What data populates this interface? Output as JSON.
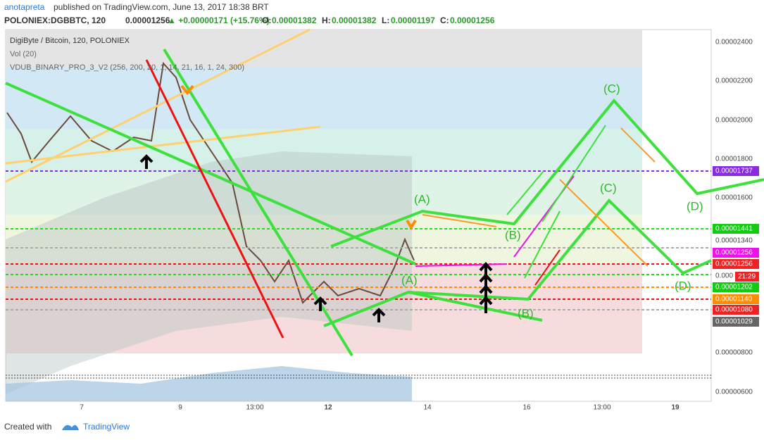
{
  "header": {
    "user": "anotapreta",
    "published": "published on TradingView.com, June 13, 2017 18:38 BRT",
    "symbol": "POLONIEX:DGBBTC, 120",
    "last": "0.00001256",
    "change": "▲ +0.00000171 (+15.76%)",
    "open_label": "O:",
    "open": "0.00001382",
    "high_label": "H:",
    "high": "0.00001382",
    "low_label": "L:",
    "low": "0.00001197",
    "close_label": "C:",
    "close": "0.00001256"
  },
  "legend": {
    "title": "DigiByte / Bitcoin, 120, POLONIEX",
    "volume": "Vol (20)",
    "indicator": "VDUB_BINARY_PRO_3_V2 (256, 200, 20, 1, 14, 21, 16, 1, 24, 300)"
  },
  "price_axis": [
    "0.00002400",
    "0.00002200",
    "0.00002000",
    "0.00001800",
    "0.00001600",
    "0.000",
    "0.00000800",
    "0.00000600"
  ],
  "price_tags": [
    "0.00001737",
    "0.00001441",
    "0.00001340",
    "0.00001256",
    "0.00001256",
    "21:29",
    "0.00001202",
    "0.00001140",
    "0.00001080",
    "0.00001029"
  ],
  "time_axis": [
    "7",
    "9",
    "13:00",
    "12",
    "14",
    "16",
    "13:00",
    "19"
  ],
  "waves": [
    "(A)",
    "(B)",
    "(C)",
    "(D)",
    "(A)",
    "(B)",
    "(C)",
    "(D)"
  ],
  "footer": {
    "created": "Created with",
    "brand": "TradingView"
  }
}
